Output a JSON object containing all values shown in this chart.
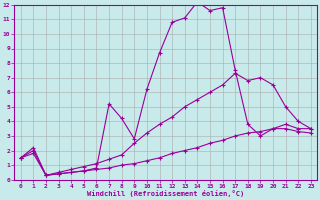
{
  "xlabel": "Windchill (Refroidissement éolien,°C)",
  "bg_color": "#c8eaea",
  "line_color": "#990099",
  "grid_color": "#aaaaaa",
  "xlim": [
    -0.5,
    23.5
  ],
  "ylim": [
    0,
    12
  ],
  "xticks": [
    0,
    1,
    2,
    3,
    4,
    5,
    6,
    7,
    8,
    9,
    10,
    11,
    12,
    13,
    14,
    15,
    16,
    17,
    18,
    19,
    20,
    21,
    22,
    23
  ],
  "yticks": [
    0,
    1,
    2,
    3,
    4,
    5,
    6,
    7,
    8,
    9,
    10,
    11,
    12
  ],
  "line1_x": [
    0,
    1,
    2,
    3,
    4,
    5,
    6,
    7,
    8,
    9,
    10,
    11,
    12,
    13,
    14,
    15,
    16,
    17,
    18,
    19,
    20,
    21,
    22,
    23
  ],
  "line1_y": [
    1.5,
    2.2,
    0.3,
    0.4,
    0.5,
    0.6,
    0.8,
    5.2,
    4.2,
    2.8,
    6.2,
    8.7,
    10.8,
    11.1,
    12.2,
    11.6,
    11.8,
    7.5,
    3.8,
    3.0,
    3.5,
    3.8,
    3.5,
    3.5
  ],
  "line2_x": [
    0,
    1,
    2,
    3,
    4,
    5,
    6,
    7,
    8,
    9,
    10,
    11,
    12,
    13,
    14,
    15,
    16,
    17,
    18,
    19,
    20,
    21,
    22,
    23
  ],
  "line2_y": [
    1.5,
    2.0,
    0.3,
    0.5,
    0.7,
    0.9,
    1.1,
    1.4,
    1.7,
    2.5,
    3.2,
    3.8,
    4.3,
    5.0,
    5.5,
    6.0,
    6.5,
    7.3,
    6.8,
    7.0,
    6.5,
    5.0,
    4.0,
    3.5
  ],
  "line3_x": [
    0,
    1,
    2,
    3,
    4,
    5,
    6,
    7,
    8,
    9,
    10,
    11,
    12,
    13,
    14,
    15,
    16,
    17,
    18,
    19,
    20,
    21,
    22,
    23
  ],
  "line3_y": [
    1.5,
    1.8,
    0.3,
    0.4,
    0.5,
    0.6,
    0.7,
    0.8,
    1.0,
    1.1,
    1.3,
    1.5,
    1.8,
    2.0,
    2.2,
    2.5,
    2.7,
    3.0,
    3.2,
    3.3,
    3.5,
    3.5,
    3.3,
    3.2
  ]
}
